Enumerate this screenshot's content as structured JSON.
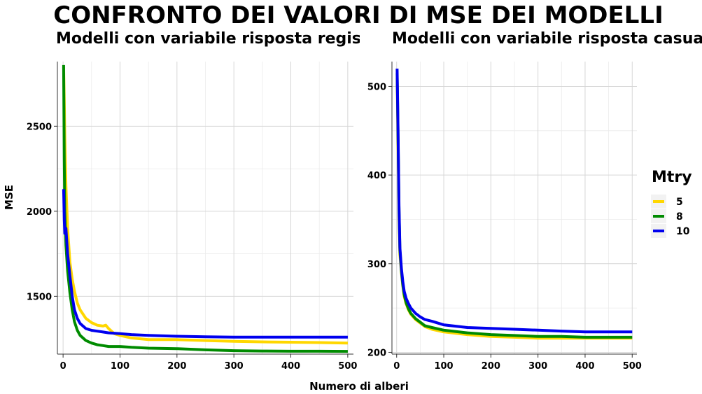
{
  "chart_data": {
    "title": "CONFRONTO DEI VALORI DI MSE DEI MODELLI",
    "xlabel": "Numero di alberi",
    "ylabel": "MSE",
    "legend": {
      "title": "Mtry",
      "placement": "right",
      "entries": [
        {
          "label": "5",
          "color": "#FFD700"
        },
        {
          "label": "8",
          "color": "#008B00"
        },
        {
          "label": "10",
          "color": "#0000EE"
        }
      ]
    },
    "panels": [
      {
        "type": "line",
        "subtitle": "Modelli con variabile risposta registered",
        "xlim": [
          -10,
          510
        ],
        "ylim": [
          1160,
          2880
        ],
        "xticks": [
          0,
          100,
          200,
          300,
          400,
          500
        ],
        "yticks": [
          1500,
          2000,
          2500
        ],
        "grid": true,
        "series": [
          {
            "name": "5",
            "color": "#FFD700",
            "x": [
              1,
              2,
              3,
              5,
              8,
              12,
              16,
              20,
              25,
              30,
              40,
              50,
              60,
              70,
              75,
              80,
              90,
              100,
              120,
              150,
              200,
              250,
              300,
              350,
              400,
              450,
              500
            ],
            "y": [
              2850,
              2650,
              2450,
              2150,
              1900,
              1700,
              1600,
              1530,
              1460,
              1420,
              1370,
              1345,
              1330,
              1325,
              1330,
              1310,
              1280,
              1270,
              1255,
              1245,
              1245,
              1240,
              1235,
              1232,
              1230,
              1228,
              1225
            ]
          },
          {
            "name": "8",
            "color": "#008B00",
            "x": [
              1,
              2,
              3,
              5,
              8,
              12,
              16,
              20,
              25,
              30,
              40,
              50,
              60,
              70,
              80,
              100,
              120,
              150,
              200,
              250,
              300,
              350,
              400,
              450,
              500
            ],
            "y": [
              2860,
              2300,
              2000,
              1800,
              1650,
              1520,
              1420,
              1350,
              1300,
              1270,
              1240,
              1225,
              1215,
              1210,
              1205,
              1205,
              1200,
              1195,
              1192,
              1185,
              1180,
              1178,
              1177,
              1177,
              1176
            ]
          },
          {
            "name": "10",
            "color": "#0000EE",
            "x": [
              1,
              2,
              3,
              5,
              8,
              12,
              16,
              20,
              25,
              30,
              40,
              50,
              60,
              70,
              80,
              100,
              120,
              150,
              200,
              250,
              300,
              350,
              400,
              450,
              500
            ],
            "y": [
              2130,
              1950,
              1870,
              1900,
              1750,
              1620,
              1500,
              1420,
              1370,
              1340,
              1310,
              1300,
              1295,
              1290,
              1285,
              1280,
              1275,
              1270,
              1265,
              1262,
              1260,
              1260,
              1260,
              1260,
              1260
            ]
          }
        ]
      },
      {
        "type": "line",
        "subtitle": "Modelli con variabile risposta casual",
        "xlim": [
          -10,
          510
        ],
        "ylim": [
          198,
          528
        ],
        "xticks": [
          0,
          100,
          200,
          300,
          400,
          500
        ],
        "yticks": [
          200,
          300,
          400,
          500
        ],
        "grid": true,
        "series": [
          {
            "name": "5",
            "color": "#FFD700",
            "x": [
              1,
              2,
              3,
              5,
              7,
              10,
              13,
              16,
              20,
              25,
              30,
              40,
              50,
              60,
              75,
              100,
              150,
              200,
              250,
              300,
              350,
              400,
              450,
              500
            ],
            "y": [
              510,
              470,
              430,
              350,
              310,
              290,
              275,
              263,
              255,
              248,
              243,
              237,
              233,
              229,
              226,
              223,
              220,
              218,
              217,
              216,
              216,
              216,
              216,
              216
            ]
          },
          {
            "name": "8",
            "color": "#008B00",
            "x": [
              1,
              2,
              3,
              5,
              7,
              10,
              13,
              16,
              20,
              25,
              30,
              40,
              50,
              60,
              75,
              100,
              150,
              200,
              250,
              300,
              350,
              400,
              450,
              500
            ],
            "y": [
              515,
              480,
              440,
              360,
              315,
              292,
              276,
              265,
              256,
              249,
              244,
              238,
              234,
              230,
              228,
              225,
              222,
              220,
              219,
              218,
              218,
              217,
              217,
              217
            ]
          },
          {
            "name": "10",
            "color": "#0000EE",
            "x": [
              1,
              2,
              3,
              5,
              7,
              10,
              13,
              16,
              20,
              25,
              30,
              40,
              50,
              60,
              75,
              100,
              150,
              200,
              250,
              300,
              350,
              400,
              450,
              500
            ],
            "y": [
              520,
              485,
              445,
              365,
              318,
              295,
              280,
              269,
              261,
              255,
              250,
              244,
              240,
              237,
              235,
              231,
              228,
              227,
              226,
              225,
              224,
              223,
              223,
              223
            ]
          }
        ]
      }
    ]
  }
}
